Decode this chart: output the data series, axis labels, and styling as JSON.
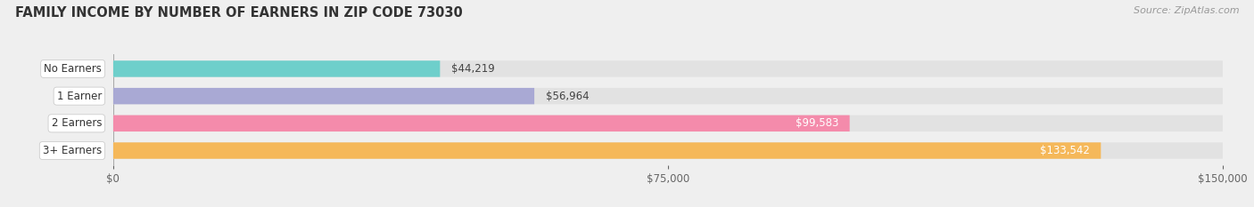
{
  "title": "FAMILY INCOME BY NUMBER OF EARNERS IN ZIP CODE 73030",
  "source": "Source: ZipAtlas.com",
  "categories": [
    "No Earners",
    "1 Earner",
    "2 Earners",
    "3+ Earners"
  ],
  "values": [
    44219,
    56964,
    99583,
    133542
  ],
  "bar_colors": [
    "#6ecfcb",
    "#a9a9d4",
    "#f48bab",
    "#f5b85a"
  ],
  "bar_labels": [
    "$44,219",
    "$56,964",
    "$99,583",
    "$133,542"
  ],
  "label_inside": [
    false,
    false,
    true,
    true
  ],
  "label_colors_inside": [
    "#444444",
    "#444444",
    "#ffffff",
    "#ffffff"
  ],
  "xlim": [
    0,
    150000
  ],
  "xticks": [
    0,
    75000,
    150000
  ],
  "xticklabels": [
    "$0",
    "$75,000",
    "$150,000"
  ],
  "background_color": "#efefef",
  "bar_bg_color": "#e2e2e2",
  "title_fontsize": 10.5,
  "source_fontsize": 8,
  "tick_fontsize": 8.5,
  "label_fontsize": 8.5,
  "category_fontsize": 8.5
}
